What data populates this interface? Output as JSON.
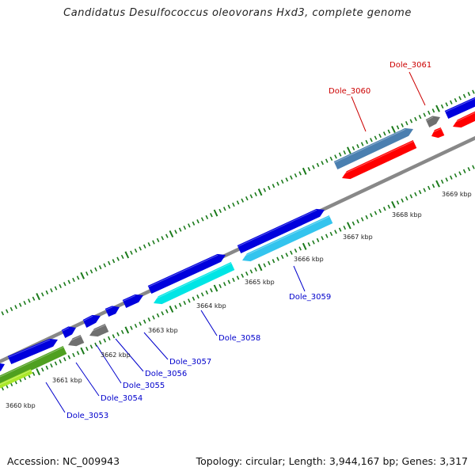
{
  "title": "Candidatus Desulfococcus oleovorans Hxd3, complete genome",
  "footer": {
    "accession": "Accession: NC_009943",
    "info": "Topology: circular; Length: 3,944,167 bp; Genes: 3,317"
  },
  "scale_labels": [
    "3660 kbp",
    "3661 kbp",
    "3662 kbp",
    "3663 kbp",
    "3664 kbp",
    "3665 kbp",
    "3666 kbp",
    "3667 kbp",
    "3668 kbp",
    "3669 kbp"
  ],
  "gene_labels": [
    {
      "text": "Dole_3053",
      "color": "#0000cc"
    },
    {
      "text": "Dole_3054",
      "color": "#0000cc"
    },
    {
      "text": "Dole_3055",
      "color": "#0000cc"
    },
    {
      "text": "Dole_3056",
      "color": "#0000cc"
    },
    {
      "text": "Dole_3057",
      "color": "#0000cc"
    },
    {
      "text": "Dole_3058",
      "color": "#0000cc"
    },
    {
      "text": "Dole_3059",
      "color": "#0000cc"
    },
    {
      "text": "Dole_3060",
      "color": "#cc0000"
    },
    {
      "text": "Dole_3061",
      "color": "#cc0000"
    }
  ],
  "colors": {
    "backbone": "#888888",
    "tick": "#1a7a1a",
    "blue": "#0000dd",
    "grey": "#707070",
    "cyan": "#00e5e5",
    "lightblue": "#33c4ee",
    "steelblue": "#4a7fb0",
    "red": "#ff0000",
    "green": "#4fa020",
    "lightgreen": "#aae82a"
  }
}
